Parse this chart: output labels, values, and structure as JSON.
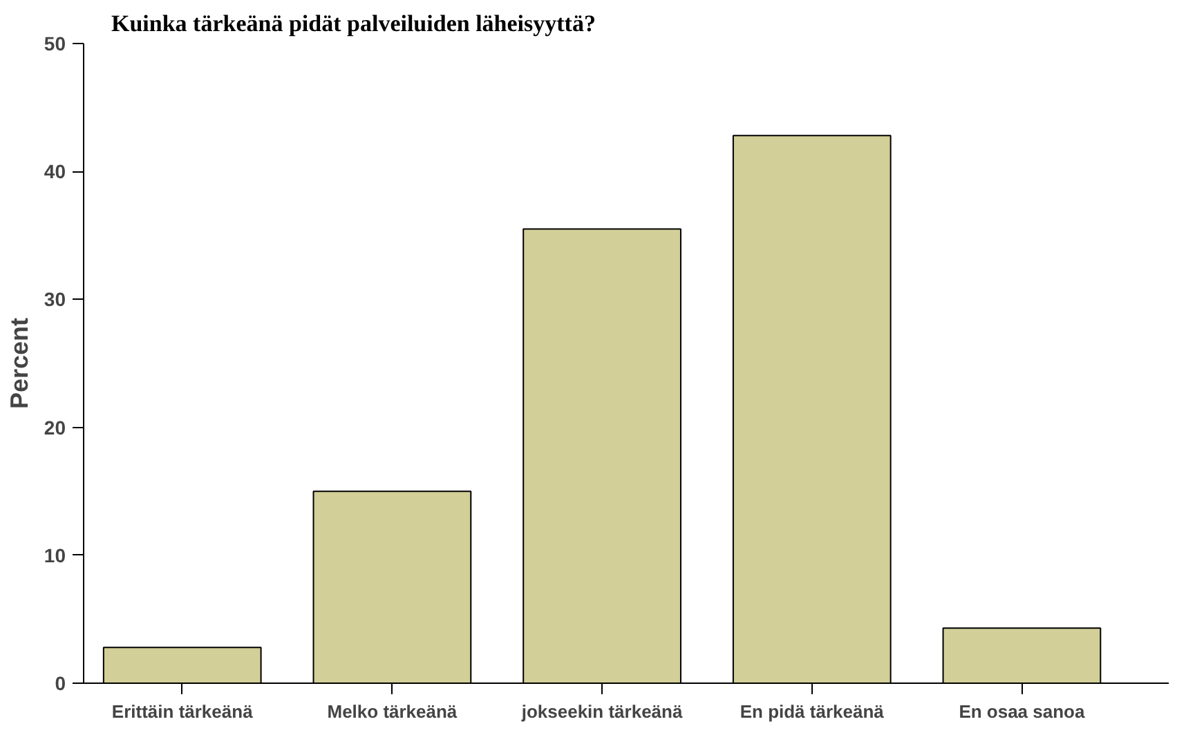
{
  "chart_data": {
    "type": "bar",
    "title": "Kuinka tärkeänä pidät palveiluiden  läheisyyttä?",
    "ylabel": "Percent",
    "categories": [
      "Erittäin tärkeänä",
      "Melko tärkeänä",
      "jokseekin tärkeänä",
      "En pidä tärkeänä",
      "En osaa sanoa"
    ],
    "values": [
      2.8,
      15.0,
      35.5,
      42.8,
      4.3
    ],
    "color": "#d3cf98",
    "ylim": [
      0,
      50
    ],
    "yticks": [
      0,
      10,
      20,
      30,
      40,
      50
    ],
    "grid": false
  }
}
